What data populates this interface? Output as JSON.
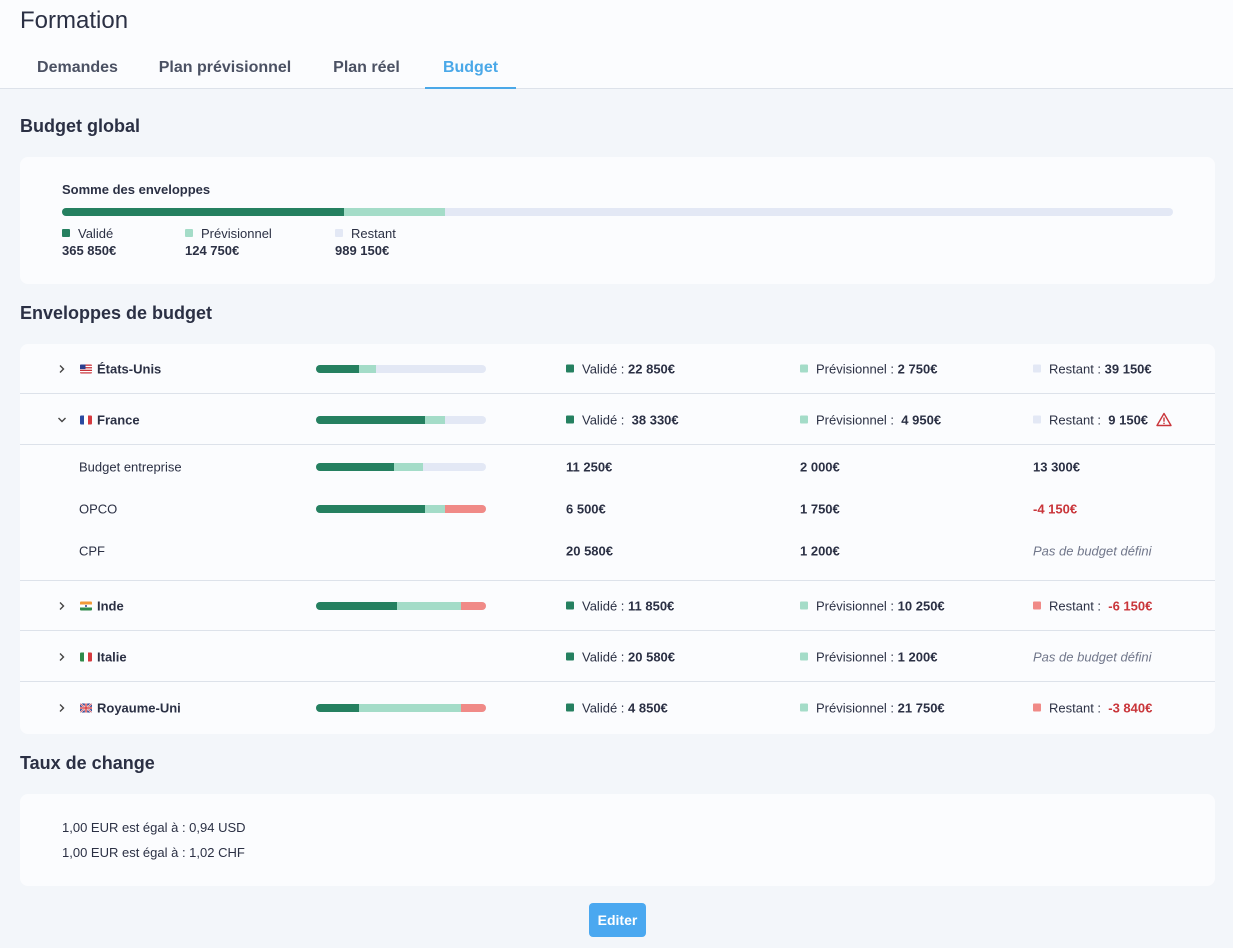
{
  "page": {
    "title": "Formation"
  },
  "tabs": [
    {
      "label": "Demandes"
    },
    {
      "label": "Plan prévisionnel"
    },
    {
      "label": "Plan réel"
    },
    {
      "label": "Budget",
      "active": true
    }
  ],
  "global": {
    "title": "Budget global",
    "card_title": "Somme des enveloppes",
    "labels": {
      "validated": "Validé",
      "forecast": "Prévisionnel",
      "remaining": "Restant"
    },
    "values": {
      "validated": "365 850€",
      "forecast": "124 750€",
      "remaining": "989 150€"
    },
    "bar": {
      "validated": 0.254,
      "forecast": 0.0905
    }
  },
  "envelopes": {
    "title": "Enveloppes de budget",
    "prefix": {
      "validated": "Validé : ",
      "forecast": "Prévisionnel : ",
      "remaining": "Restant : "
    },
    "no_budget": "Pas de budget défini",
    "us": {
      "name": "États-Unis",
      "validated": "22 850€",
      "forecast": "2 750€",
      "remaining": "39 150€",
      "bar": {
        "v": 0.25,
        "p": 0.1,
        "n": 0
      }
    },
    "fr": {
      "name": "France",
      "validated": "38 330€",
      "forecast": "4 950€",
      "remaining": "9 150€",
      "bar": {
        "v": 0.64,
        "p": 0.12,
        "n": 0
      },
      "subs": [
        {
          "name": "Budget entreprise",
          "validated": "11 250€",
          "forecast": "2 000€",
          "remaining": "13 300€",
          "bar": {
            "v": 0.46,
            "p": 0.17,
            "n": 0
          }
        },
        {
          "name": "OPCO",
          "validated": "6 500€",
          "forecast": "1 750€",
          "remaining": "-4 150€",
          "bar": {
            "v": 0.64,
            "p": 0.12,
            "n": 0.24
          }
        },
        {
          "name": "CPF",
          "validated": "20 580€",
          "forecast": "1 200€",
          "remaining": "Pas de budget défini"
        }
      ]
    },
    "in": {
      "name": "Inde",
      "validated": "11 850€",
      "forecast": "10 250€",
      "remaining": "-6 150€",
      "bar": {
        "v": 0.475,
        "p": 0.38,
        "n": 0.145
      }
    },
    "it": {
      "name": "Italie",
      "validated": "20 580€",
      "forecast": "1 200€",
      "remaining": "Pas de budget défini"
    },
    "uk": {
      "name": "Royaume-Uni",
      "validated": "4 850€",
      "forecast": "21 750€",
      "remaining": "-3 840€",
      "bar": {
        "v": 0.25,
        "p": 0.6,
        "n": 0.15
      }
    }
  },
  "exchange": {
    "title": "Taux de change",
    "lines": [
      "1,00 EUR est égal à : 0,94 USD",
      "1,00 EUR est égal à : 1,02 CHF"
    ]
  },
  "edit_label": "Editer",
  "colors": {
    "validated": "#258060",
    "forecast": "#a4dcc8",
    "remaining": "#e3e8f5",
    "over": "#f08a87",
    "accent": "#4aa8e8",
    "negative": "#c9353a"
  }
}
